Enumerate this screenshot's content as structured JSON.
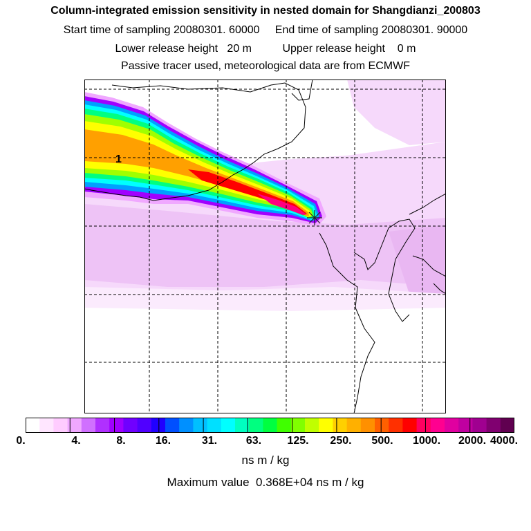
{
  "header": {
    "title": "Column-integrated emission sensitivity in nested domain for Shangdianzi_200803",
    "line1": "Start time of sampling 20080301. 60000     End time of sampling 20080301. 90000",
    "line2": "Lower release height   20 m          Upper release height    0 m",
    "line3": "Passive tracer used, meteorological data are from ECMWF"
  },
  "map": {
    "contour_label": "1",
    "receptor_marker": "receptor-star-icon",
    "plume_colors": [
      "#ff0000",
      "#ff0080",
      "#ffa000",
      "#ffff00",
      "#a0ff00",
      "#00ff80",
      "#00ffff",
      "#00a0ff",
      "#a000ff",
      "#ff80ff"
    ]
  },
  "colorbar": {
    "colors": [
      "#ffffff",
      "#ffe6ff",
      "#ffccff",
      "#f0a8ff",
      "#d070ff",
      "#b030ff",
      "#a000ff",
      "#7000ff",
      "#5000ff",
      "#2000ff",
      "#0050ff",
      "#0090ff",
      "#00c0ff",
      "#00e0ff",
      "#00ffff",
      "#00ffc0",
      "#00ff80",
      "#00ff40",
      "#40ff00",
      "#80ff00",
      "#c0ff00",
      "#ffff00",
      "#ffd000",
      "#ffb000",
      "#ff9000",
      "#ff6000",
      "#ff3000",
      "#ff0000",
      "#ff0060",
      "#ff0090",
      "#e000a0",
      "#c000a0",
      "#a00090",
      "#800070",
      "#600050"
    ],
    "tick_labels": [
      "0.",
      "4.",
      "8.",
      "16.",
      "31.",
      "63.",
      "125.",
      "250.",
      "500.",
      "1000.",
      "2000.",
      "4000."
    ],
    "units": "ns m / kg"
  },
  "footer": {
    "max_value": "Maximum value  0.368E+04 ns m / kg"
  }
}
